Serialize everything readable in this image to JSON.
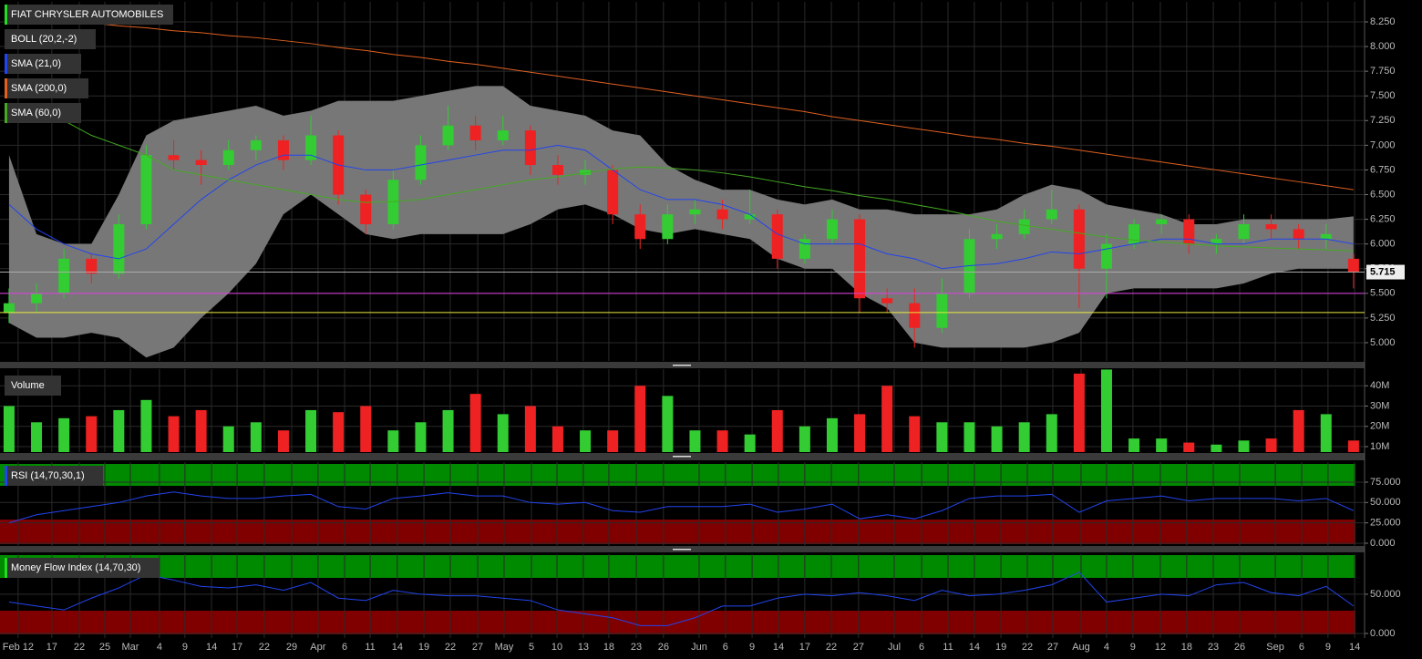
{
  "chart_data": [
    {
      "type": "candlestick",
      "title": "FIAT CHRYSLER AUTOMOBILES",
      "title_color": "#22dd22",
      "xlim": [
        -0.33,
        49.17
      ],
      "xticks": [
        {
          "value": 0.33,
          "label": "Feb 12"
        },
        {
          "value": 1.56,
          "label": "17"
        },
        {
          "value": 2.56,
          "label": "22"
        },
        {
          "value": 3.49,
          "label": "25"
        },
        {
          "value": 4.42,
          "label": "Mar"
        },
        {
          "value": 5.48,
          "label": "4"
        },
        {
          "value": 6.41,
          "label": "9"
        },
        {
          "value": 7.38,
          "label": "14"
        },
        {
          "value": 8.31,
          "label": "17"
        },
        {
          "value": 9.3,
          "label": "22"
        },
        {
          "value": 10.3,
          "label": "29"
        },
        {
          "value": 11.26,
          "label": "Apr"
        },
        {
          "value": 12.23,
          "label": "6"
        },
        {
          "value": 13.16,
          "label": "11"
        },
        {
          "value": 14.15,
          "label": "14"
        },
        {
          "value": 15.12,
          "label": "19"
        },
        {
          "value": 16.08,
          "label": "22"
        },
        {
          "value": 17.08,
          "label": "27"
        },
        {
          "value": 18.04,
          "label": "May"
        },
        {
          "value": 19.04,
          "label": "5"
        },
        {
          "value": 19.97,
          "label": "10"
        },
        {
          "value": 20.93,
          "label": "13"
        },
        {
          "value": 21.86,
          "label": "18"
        },
        {
          "value": 22.86,
          "label": "23"
        },
        {
          "value": 23.85,
          "label": "26"
        },
        {
          "value": 25.15,
          "label": "Jun"
        },
        {
          "value": 26.11,
          "label": "6"
        },
        {
          "value": 27.08,
          "label": "9"
        },
        {
          "value": 28.04,
          "label": "14"
        },
        {
          "value": 29.0,
          "label": "17"
        },
        {
          "value": 29.97,
          "label": "22"
        },
        {
          "value": 30.96,
          "label": "27"
        },
        {
          "value": 32.26,
          "label": "Jul"
        },
        {
          "value": 33.26,
          "label": "6"
        },
        {
          "value": 34.22,
          "label": "11"
        },
        {
          "value": 35.18,
          "label": "14"
        },
        {
          "value": 36.15,
          "label": "19"
        },
        {
          "value": 37.11,
          "label": "22"
        },
        {
          "value": 38.04,
          "label": "27"
        },
        {
          "value": 39.07,
          "label": "Aug"
        },
        {
          "value": 40.0,
          "label": "4"
        },
        {
          "value": 40.96,
          "label": "9"
        },
        {
          "value": 41.96,
          "label": "12"
        },
        {
          "value": 42.92,
          "label": "18"
        },
        {
          "value": 43.89,
          "label": "23"
        },
        {
          "value": 44.85,
          "label": "26"
        },
        {
          "value": 46.15,
          "label": "Sep"
        },
        {
          "value": 47.11,
          "label": "6"
        },
        {
          "value": 48.07,
          "label": "9"
        },
        {
          "value": 49.04,
          "label": "14"
        }
      ],
      "ylim": [
        4.815,
        8.453
      ],
      "yticks": [
        {
          "value": 8.25,
          "label": "8.250"
        },
        {
          "value": 8.0,
          "label": "8.000"
        },
        {
          "value": 7.75,
          "label": "7.750"
        },
        {
          "value": 7.5,
          "label": "7.500"
        },
        {
          "value": 7.25,
          "label": "7.250"
        },
        {
          "value": 7.0,
          "label": "7.000"
        },
        {
          "value": 6.75,
          "label": "6.750"
        },
        {
          "value": 6.5,
          "label": "6.500"
        },
        {
          "value": 6.25,
          "label": "6.250"
        },
        {
          "value": 6.0,
          "label": "6.000"
        },
        {
          "value": 5.75,
          "label": "5.750"
        },
        {
          "value": 5.5,
          "label": "5.500"
        },
        {
          "value": 5.25,
          "label": "5.250"
        },
        {
          "value": 5.0,
          "label": "5.000"
        }
      ],
      "up_color": "#33cc33",
      "down_color": "#ee2222",
      "open": [
        5.3,
        5.4,
        5.5,
        5.85,
        5.7,
        6.2,
        6.9,
        6.85,
        6.8,
        6.95,
        7.05,
        6.85,
        7.1,
        6.5,
        6.2,
        6.65,
        7.0,
        7.2,
        7.05,
        7.15,
        6.8,
        6.7,
        6.75,
        6.3,
        6.05,
        6.3,
        6.35,
        6.25,
        6.3,
        5.85,
        6.05,
        6.25,
        5.45,
        5.4,
        5.15,
        5.5,
        6.05,
        6.1,
        6.25,
        6.35,
        5.75,
        6.0,
        6.2,
        6.25,
        6.0,
        6.05,
        6.2,
        6.15,
        6.05,
        5.85
      ],
      "high": [
        5.55,
        5.6,
        5.95,
        5.9,
        6.3,
        7.0,
        7.05,
        6.95,
        7.05,
        7.1,
        7.1,
        7.3,
        7.15,
        6.55,
        6.75,
        7.1,
        7.4,
        7.3,
        7.3,
        7.2,
        6.9,
        6.85,
        6.8,
        6.4,
        6.4,
        6.45,
        6.45,
        6.55,
        6.35,
        6.1,
        6.35,
        6.3,
        5.55,
        5.55,
        5.65,
        6.15,
        6.2,
        6.35,
        6.55,
        6.4,
        6.1,
        6.25,
        6.3,
        6.3,
        6.1,
        6.3,
        6.3,
        6.2,
        6.2,
        5.9
      ],
      "low": [
        5.2,
        5.3,
        5.45,
        5.6,
        5.65,
        6.15,
        6.75,
        6.6,
        6.75,
        6.85,
        6.75,
        6.8,
        6.4,
        6.1,
        6.15,
        6.6,
        6.95,
        6.95,
        7.0,
        6.7,
        6.6,
        6.6,
        6.2,
        5.95,
        6.0,
        6.2,
        6.15,
        6.2,
        5.75,
        5.8,
        6.0,
        5.3,
        5.3,
        4.95,
        5.1,
        5.45,
        5.95,
        6.05,
        6.2,
        5.35,
        5.45,
        5.95,
        6.1,
        5.9,
        5.9,
        6.0,
        6.05,
        5.95,
        5.95,
        5.55
      ],
      "close": [
        5.4,
        5.5,
        5.85,
        5.7,
        6.2,
        6.9,
        6.85,
        6.8,
        6.95,
        7.05,
        6.85,
        7.1,
        6.5,
        6.2,
        6.65,
        7.0,
        7.2,
        7.05,
        7.15,
        6.8,
        6.7,
        6.75,
        6.3,
        6.05,
        6.3,
        6.35,
        6.25,
        6.3,
        5.85,
        6.05,
        6.25,
        5.45,
        5.4,
        5.15,
        5.5,
        6.05,
        6.1,
        6.25,
        6.35,
        5.75,
        6.0,
        6.2,
        6.25,
        6.0,
        6.05,
        6.2,
        6.15,
        6.05,
        6.1,
        5.715
      ],
      "series": [
        {
          "name": "BOLL (20,2,-2)",
          "color": "#777777",
          "legend_color": "#333333",
          "upper": [
            6.9,
            6.1,
            6.0,
            6.0,
            6.5,
            7.1,
            7.25,
            7.3,
            7.35,
            7.4,
            7.3,
            7.35,
            7.45,
            7.45,
            7.45,
            7.5,
            7.55,
            7.6,
            7.6,
            7.4,
            7.35,
            7.3,
            7.15,
            7.1,
            6.8,
            6.65,
            6.55,
            6.55,
            6.45,
            6.4,
            6.45,
            6.35,
            6.35,
            6.3,
            6.3,
            6.3,
            6.35,
            6.5,
            6.6,
            6.55,
            6.4,
            6.35,
            6.3,
            6.2,
            6.2,
            6.25,
            6.25,
            6.25,
            6.25,
            6.28
          ],
          "lower": [
            5.2,
            5.05,
            5.05,
            5.1,
            5.05,
            4.85,
            4.95,
            5.25,
            5.5,
            5.8,
            6.3,
            6.5,
            6.3,
            6.1,
            6.05,
            6.1,
            6.1,
            6.1,
            6.1,
            6.2,
            6.35,
            6.4,
            6.3,
            6.15,
            6.1,
            6.15,
            6.1,
            6.05,
            5.85,
            5.75,
            5.75,
            5.5,
            5.35,
            5.0,
            4.95,
            4.95,
            4.95,
            4.95,
            5.0,
            5.1,
            5.5,
            5.55,
            5.55,
            5.55,
            5.55,
            5.6,
            5.7,
            5.75,
            5.75,
            5.75
          ]
        },
        {
          "name": "SMA (21,0)",
          "color": "#2244ee",
          "values": [
            6.4,
            6.15,
            6.0,
            5.9,
            5.85,
            5.95,
            6.2,
            6.45,
            6.65,
            6.8,
            6.9,
            6.9,
            6.8,
            6.75,
            6.75,
            6.8,
            6.85,
            6.9,
            6.95,
            6.95,
            7.0,
            6.95,
            6.75,
            6.55,
            6.45,
            6.45,
            6.4,
            6.3,
            6.1,
            6.0,
            6.0,
            6.0,
            5.9,
            5.85,
            5.75,
            5.78,
            5.8,
            5.85,
            5.92,
            5.9,
            5.95,
            6.0,
            6.05,
            6.05,
            6.0,
            6.0,
            6.05,
            6.05,
            6.05,
            6.0
          ]
        },
        {
          "name": "SMA (200,0)",
          "color": "#e06020",
          "values": [
            8.33,
            8.3,
            8.27,
            8.24,
            8.21,
            8.19,
            8.16,
            8.14,
            8.11,
            8.09,
            8.06,
            8.03,
            7.99,
            7.96,
            7.92,
            7.89,
            7.85,
            7.82,
            7.78,
            7.74,
            7.7,
            7.66,
            7.62,
            7.58,
            7.54,
            7.5,
            7.46,
            7.42,
            7.38,
            7.34,
            7.29,
            7.25,
            7.21,
            7.17,
            7.13,
            7.09,
            7.06,
            7.02,
            6.99,
            6.95,
            6.91,
            6.87,
            6.83,
            6.79,
            6.75,
            6.71,
            6.67,
            6.63,
            6.59,
            6.55
          ]
        },
        {
          "name": "SMA (60,0)",
          "color": "#44aa22",
          "values": [
            null,
            null,
            7.25,
            7.1,
            7.0,
            6.9,
            6.75,
            6.7,
            6.65,
            6.6,
            6.55,
            6.5,
            6.45,
            6.42,
            6.43,
            6.45,
            6.5,
            6.55,
            6.6,
            6.65,
            6.68,
            6.72,
            6.76,
            6.78,
            6.77,
            6.75,
            6.72,
            6.68,
            6.63,
            6.58,
            6.54,
            6.49,
            6.45,
            6.4,
            6.35,
            6.29,
            6.23,
            6.19,
            6.15,
            6.11,
            6.07,
            6.04,
            6.02,
            6.0,
            5.98,
            5.97,
            5.96,
            5.95,
            5.94,
            5.93
          ]
        }
      ],
      "levels": [
        {
          "value": 5.5,
          "color": "#e040e0"
        },
        {
          "value": 5.305,
          "color": "#e8e840"
        }
      ],
      "last_price": 5.715
    },
    {
      "type": "bar",
      "title": "Volume",
      "ylim": [
        7.3,
        48.2
      ],
      "yticks": [
        {
          "value": 10,
          "label": "10M"
        },
        {
          "value": 20,
          "label": "20M"
        },
        {
          "value": 30,
          "label": "30M"
        },
        {
          "value": 40,
          "label": "40M"
        }
      ],
      "values": [
        30,
        22,
        24,
        25,
        28,
        33,
        25,
        28,
        20,
        22,
        18,
        28,
        27,
        30,
        18,
        22,
        28,
        36,
        26,
        30,
        20,
        18,
        18,
        40,
        35,
        18,
        18,
        16,
        28,
        20,
        24,
        26,
        40,
        25,
        22,
        22,
        20,
        22,
        26,
        46,
        48,
        14,
        14,
        12,
        11,
        13,
        14,
        28,
        26,
        13
      ]
    },
    {
      "type": "line",
      "title": "RSI (14,70,30,1)",
      "title_color": "#2244ee",
      "color": "#2244ee",
      "ylim": [
        -4.5,
        99.6
      ],
      "yticks": [
        {
          "value": 75,
          "label": "75.000"
        },
        {
          "value": 50,
          "label": "50.000"
        },
        {
          "value": 25,
          "label": "25.000"
        },
        {
          "value": 0,
          "label": "0.000"
        }
      ],
      "values": [
        25,
        35,
        40,
        45,
        50,
        58,
        63,
        58,
        55,
        55,
        58,
        60,
        45,
        42,
        55,
        58,
        62,
        58,
        58,
        50,
        48,
        50,
        40,
        38,
        45,
        45,
        45,
        48,
        38,
        42,
        48,
        30,
        35,
        30,
        40,
        55,
        58,
        58,
        60,
        38,
        52,
        55,
        58,
        52,
        55,
        55,
        55,
        52,
        55,
        40
      ]
    },
    {
      "type": "line",
      "title": "Money Flow Index (14,70,30)",
      "title_color": "#22dd22",
      "color": "#2244ee",
      "ylim": [
        -5.8,
        101
      ],
      "yticks": [
        {
          "value": 50,
          "label": "50.000"
        },
        {
          "value": 0,
          "label": "0.000"
        }
      ],
      "values": [
        40,
        35,
        30,
        45,
        58,
        75,
        68,
        60,
        58,
        62,
        55,
        65,
        45,
        42,
        55,
        50,
        48,
        48,
        45,
        42,
        30,
        25,
        20,
        10,
        10,
        20,
        35,
        35,
        45,
        50,
        48,
        52,
        48,
        42,
        55,
        48,
        50,
        55,
        62,
        78,
        40,
        45,
        50,
        48,
        62,
        65,
        52,
        48,
        60,
        35
      ]
    }
  ]
}
